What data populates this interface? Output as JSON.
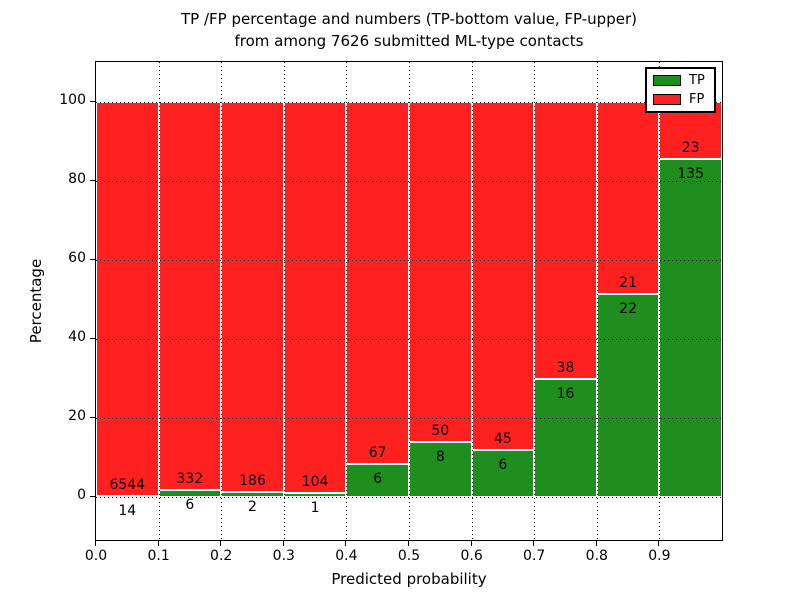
{
  "title": {
    "line1": "TP /FP percentage and numbers (TP-bottom value, FP-upper)",
    "line2": "from among 7626 submitted ML-type contacts"
  },
  "chart_data": {
    "type": "bar",
    "stacked": true,
    "normalized_to_percent": true,
    "title": "TP /FP percentage and numbers (TP-bottom value, FP-upper) from among 7626 submitted ML-type contacts",
    "xlabel": "Predicted probability",
    "ylabel": "Percentage",
    "bin_edges": [
      0.0,
      0.1,
      0.2,
      0.3,
      0.4,
      0.5,
      0.6,
      0.7,
      0.8,
      0.9,
      1.0
    ],
    "series": [
      {
        "name": "TP",
        "color": "#1e8e1e",
        "counts": [
          14,
          6,
          2,
          1,
          6,
          8,
          6,
          16,
          22,
          135
        ]
      },
      {
        "name": "FP",
        "color": "#ff2020",
        "counts": [
          6544,
          332,
          186,
          104,
          67,
          50,
          45,
          38,
          21,
          23
        ]
      }
    ],
    "tp_percent_heights": [
      0.2,
      1.8,
      1.1,
      1.0,
      8.2,
      13.8,
      11.8,
      29.6,
      51.2,
      85.4
    ],
    "total_contacts": 7626,
    "xlim": [
      0.0,
      1.0
    ],
    "ylim": [
      -11,
      110
    ],
    "xticks": [
      "0.0",
      "0.1",
      "0.2",
      "0.3",
      "0.4",
      "0.5",
      "0.6",
      "0.7",
      "0.8",
      "0.9"
    ],
    "yticks": [
      0,
      20,
      40,
      60,
      80,
      100
    ],
    "grid": "dotted black, horizontal and vertical, drawn over bars",
    "bar_edge_color": "#ffffff",
    "legend": {
      "position": "upper right",
      "entries": [
        {
          "label": "TP",
          "color": "#1e8e1e"
        },
        {
          "label": "FP",
          "color": "#ff2020"
        }
      ]
    }
  }
}
